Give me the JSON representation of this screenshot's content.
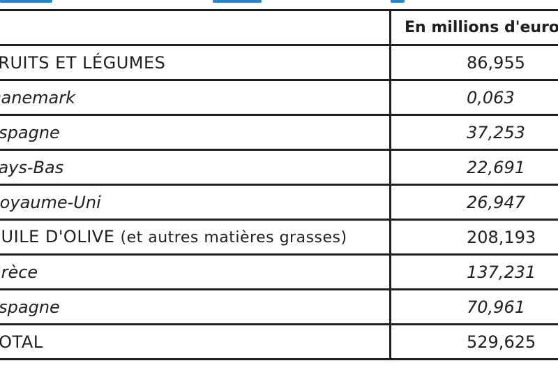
{
  "table": {
    "header": {
      "label": "",
      "value": "En millions d'euros"
    },
    "rows": [
      {
        "label": "FRUITS ET LÉGUMES",
        "value": "86,955",
        "kind": "category"
      },
      {
        "label": "Danemark",
        "value": "0,063",
        "kind": "sub"
      },
      {
        "label": "Espagne",
        "value": "37,253",
        "kind": "sub"
      },
      {
        "label": "Pays-Bas",
        "value": "22,691",
        "kind": "sub"
      },
      {
        "label": "Royaume-Uni",
        "value": "26,947",
        "kind": "sub"
      },
      {
        "label": "HUILE D'OLIVE",
        "note": "(et autres matières grasses)",
        "value": "208,193",
        "kind": "category"
      },
      {
        "label": "Grèce",
        "value": "137,231",
        "kind": "sub"
      },
      {
        "label": "Espagne",
        "value": "70,961",
        "kind": "sub"
      },
      {
        "label": "TOTAL",
        "value": "529,625",
        "kind": "category"
      }
    ]
  },
  "colors": {
    "title_accent": "#2e86c1",
    "border": "#1f1f1f",
    "text": "#1f1f1f"
  }
}
